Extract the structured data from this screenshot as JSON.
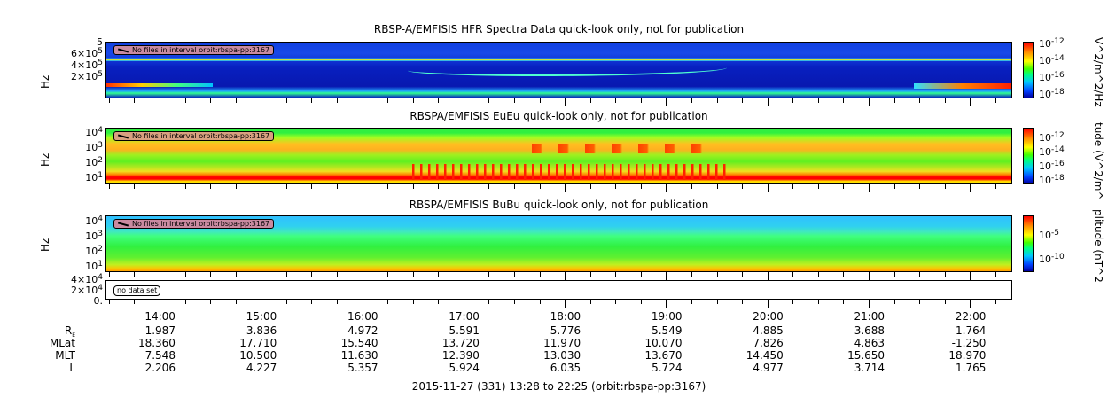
{
  "chart_data": [
    {
      "type": "heatmap",
      "title": "RBSP-A/EMFISIS  HFR Spectra Data quick-look only, not for publication",
      "ylabel": "Hz",
      "yticks": [
        "2×10^5",
        "4×10^5",
        "6×10^5",
        "5"
      ],
      "colorbar": {
        "label": "V^2/m^2/Hz",
        "ticks": [
          "10^-12",
          "10^-14",
          "10^-16",
          "10^-18"
        ]
      },
      "note": "No files in interval orbit:rbspa-pp:3167"
    },
    {
      "type": "heatmap",
      "title": "RBSPA/EMFISIS  EuEu quick-look only, not for publication",
      "ylabel": "Hz",
      "yticks": [
        "10^4",
        "10^3",
        "10^2",
        "10^1",
        "10^0"
      ],
      "colorbar": {
        "label": "tude (V^2/m^",
        "ticks": [
          "10^-12",
          "10^-14",
          "10^-16",
          "10^-18"
        ]
      },
      "note": "No files in interval orbit:rbspa-pp:3167"
    },
    {
      "type": "heatmap",
      "title": "RBSPA/EMFISIS  BuBu quick-look only, not for publication",
      "ylabel": "Hz",
      "yticks": [
        "10^4",
        "10^3",
        "10^2",
        "10^1"
      ],
      "colorbar": {
        "label": "plitude (nT^2",
        "ticks": [
          "10^-5",
          "10^-10"
        ]
      },
      "note": "No files in interval orbit:rbspa-pp:3167"
    },
    {
      "type": "line",
      "yticks": [
        "4×10^4",
        "2×10^4",
        "0."
      ],
      "note": "no data set"
    }
  ],
  "ephemeris": {
    "times": [
      "14:00",
      "15:00",
      "16:00",
      "17:00",
      "18:00",
      "19:00",
      "20:00",
      "21:00",
      "22:00"
    ],
    "rows": [
      {
        "label": "R",
        "sub": "E",
        "values": [
          "1.987",
          "3.836",
          "4.972",
          "5.591",
          "5.776",
          "5.549",
          "4.885",
          "3.688",
          "1.764"
        ]
      },
      {
        "label": "MLat",
        "values": [
          "18.360",
          "17.710",
          "15.540",
          "13.720",
          "11.970",
          "10.070",
          "7.826",
          "4.863",
          "-1.250"
        ]
      },
      {
        "label": "MLT",
        "values": [
          "7.548",
          "10.500",
          "11.630",
          "12.390",
          "13.030",
          "13.670",
          "14.450",
          "15.650",
          "18.970"
        ]
      },
      {
        "label": "L",
        "values": [
          "2.206",
          "4.227",
          "5.357",
          "5.924",
          "6.035",
          "5.724",
          "4.977",
          "3.714",
          "1.765"
        ]
      }
    ]
  },
  "footer": "2015-11-27 (331) 13:28 to 22:25 (orbit:rbspa-pp:3167)"
}
